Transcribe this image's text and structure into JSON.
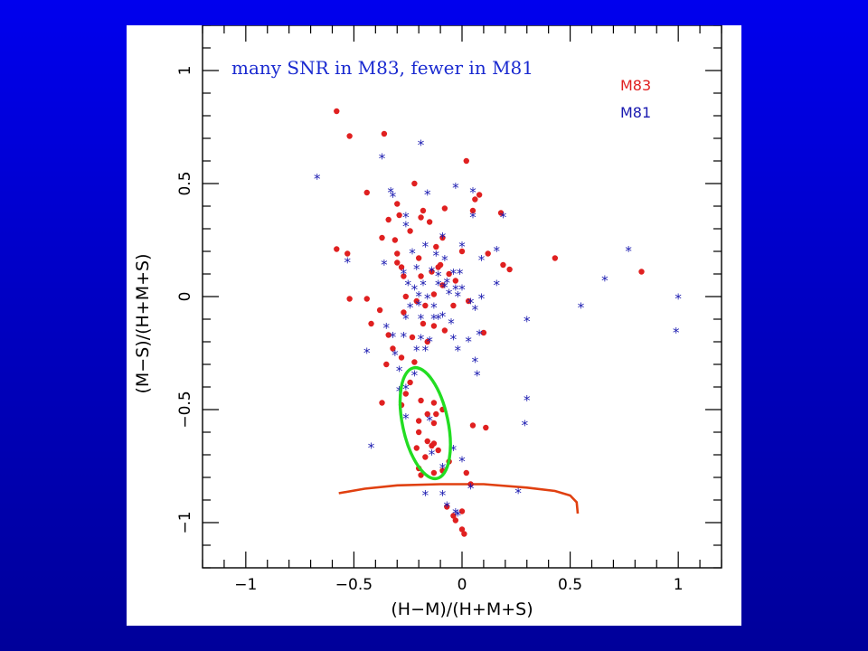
{
  "chart_data": {
    "type": "scatter",
    "title": "",
    "xlabel": "(H−M)/(H+M+S)",
    "ylabel": "(M−S)/(H+M+S)",
    "xlim": [
      -1.2,
      1.2
    ],
    "ylim": [
      -1.2,
      1.2
    ],
    "x_ticks": [
      -1,
      -0.5,
      0,
      0.5,
      1
    ],
    "x_tick_labels": [
      "−1",
      "−0.5",
      "0",
      "0.5",
      "1"
    ],
    "y_ticks": [
      -1,
      -0.5,
      0,
      0.5,
      1
    ],
    "y_tick_labels": [
      "−1",
      "−0.5",
      "0",
      "0.5",
      "1"
    ],
    "grid": false,
    "legend": {
      "placement": "top-right",
      "entries": [
        "M83",
        "M81"
      ]
    },
    "annotation": "many SNR in M83, fewer in M81",
    "ellipse": {
      "cx": -0.17,
      "cy": -0.56,
      "rx": 0.105,
      "ry": 0.25,
      "tilt_deg": -12,
      "color": "#22dd22"
    },
    "curve": {
      "color": "#e04010",
      "points": [
        [
          -0.57,
          -0.87
        ],
        [
          -0.45,
          -0.85
        ],
        [
          -0.3,
          -0.835
        ],
        [
          -0.1,
          -0.83
        ],
        [
          0.1,
          -0.83
        ],
        [
          0.3,
          -0.845
        ],
        [
          0.43,
          -0.86
        ],
        [
          0.5,
          -0.88
        ],
        [
          0.53,
          -0.91
        ],
        [
          0.535,
          -0.96
        ]
      ]
    },
    "series": [
      {
        "name": "M83",
        "color": "#e02020",
        "marker": "dot",
        "points": [
          [
            -0.58,
            0.82
          ],
          [
            -0.52,
            0.71
          ],
          [
            -0.36,
            0.72
          ],
          [
            0.02,
            0.6
          ],
          [
            -0.44,
            0.46
          ],
          [
            -0.22,
            0.5
          ],
          [
            -0.3,
            0.41
          ],
          [
            -0.18,
            0.38
          ],
          [
            -0.08,
            0.39
          ],
          [
            0.06,
            0.43
          ],
          [
            0.08,
            0.45
          ],
          [
            0.18,
            0.37
          ],
          [
            -0.34,
            0.34
          ],
          [
            -0.29,
            0.36
          ],
          [
            -0.19,
            0.35
          ],
          [
            -0.15,
            0.33
          ],
          [
            0.05,
            0.38
          ],
          [
            -0.24,
            0.29
          ],
          [
            -0.09,
            0.26
          ],
          [
            -0.12,
            0.22
          ],
          [
            -0.31,
            0.25
          ],
          [
            -0.37,
            0.26
          ],
          [
            -0.58,
            0.21
          ],
          [
            -0.53,
            0.19
          ],
          [
            -0.3,
            0.19
          ],
          [
            -0.2,
            0.17
          ],
          [
            -0.1,
            0.14
          ],
          [
            0.0,
            0.2
          ],
          [
            0.12,
            0.19
          ],
          [
            0.19,
            0.14
          ],
          [
            0.22,
            0.12
          ],
          [
            0.43,
            0.17
          ],
          [
            0.83,
            0.11
          ],
          [
            -0.3,
            0.15
          ],
          [
            -0.28,
            0.13
          ],
          [
            -0.27,
            0.09
          ],
          [
            -0.19,
            0.09
          ],
          [
            -0.14,
            0.11
          ],
          [
            -0.11,
            0.13
          ],
          [
            -0.06,
            0.1
          ],
          [
            -0.09,
            0.05
          ],
          [
            -0.03,
            0.07
          ],
          [
            -0.52,
            -0.01
          ],
          [
            -0.44,
            -0.01
          ],
          [
            -0.26,
            0.0
          ],
          [
            -0.21,
            -0.02
          ],
          [
            -0.17,
            -0.04
          ],
          [
            -0.13,
            0.01
          ],
          [
            -0.04,
            -0.04
          ],
          [
            0.03,
            -0.02
          ],
          [
            -0.38,
            -0.06
          ],
          [
            -0.42,
            -0.12
          ],
          [
            -0.34,
            -0.17
          ],
          [
            -0.27,
            -0.07
          ],
          [
            -0.18,
            -0.12
          ],
          [
            -0.13,
            -0.13
          ],
          [
            -0.08,
            -0.15
          ],
          [
            -0.23,
            -0.18
          ],
          [
            -0.16,
            -0.2
          ],
          [
            0.1,
            -0.16
          ],
          [
            -0.32,
            -0.23
          ],
          [
            -0.35,
            -0.3
          ],
          [
            -0.28,
            -0.27
          ],
          [
            -0.22,
            -0.29
          ],
          [
            -0.37,
            -0.47
          ],
          [
            -0.26,
            -0.43
          ],
          [
            -0.24,
            -0.38
          ],
          [
            -0.28,
            -0.48
          ],
          [
            -0.19,
            -0.46
          ],
          [
            -0.13,
            -0.47
          ],
          [
            -0.16,
            -0.52
          ],
          [
            -0.12,
            -0.52
          ],
          [
            -0.2,
            -0.55
          ],
          [
            -0.13,
            -0.56
          ],
          [
            -0.09,
            -0.5
          ],
          [
            -0.2,
            -0.6
          ],
          [
            -0.13,
            -0.65
          ],
          [
            -0.16,
            -0.64
          ],
          [
            -0.14,
            -0.66
          ],
          [
            -0.11,
            -0.68
          ],
          [
            -0.21,
            -0.67
          ],
          [
            -0.17,
            -0.71
          ],
          [
            -0.2,
            -0.76
          ],
          [
            -0.13,
            -0.78
          ],
          [
            -0.09,
            -0.77
          ],
          [
            -0.19,
            -0.79
          ],
          [
            -0.06,
            -0.73
          ],
          [
            0.02,
            -0.78
          ],
          [
            0.05,
            -0.57
          ],
          [
            0.11,
            -0.58
          ],
          [
            0.04,
            -0.83
          ],
          [
            0.0,
            -0.95
          ],
          [
            -0.04,
            -0.97
          ],
          [
            -0.03,
            -0.99
          ],
          [
            0.0,
            -1.03
          ],
          [
            0.01,
            -1.05
          ],
          [
            -0.07,
            -0.93
          ]
        ]
      },
      {
        "name": "M81",
        "color": "#1a1ab0",
        "marker": "asterisk",
        "points": [
          [
            -0.67,
            0.52
          ],
          [
            -0.37,
            0.61
          ],
          [
            -0.19,
            0.67
          ],
          [
            -0.16,
            0.45
          ],
          [
            -0.33,
            0.46
          ],
          [
            -0.32,
            0.44
          ],
          [
            -0.03,
            0.48
          ],
          [
            0.05,
            0.46
          ],
          [
            0.05,
            0.35
          ],
          [
            0.19,
            0.35
          ],
          [
            -0.26,
            0.35
          ],
          [
            -0.26,
            0.31
          ],
          [
            -0.09,
            0.26
          ],
          [
            -0.53,
            0.15
          ],
          [
            -0.36,
            0.14
          ],
          [
            -0.23,
            0.19
          ],
          [
            -0.17,
            0.22
          ],
          [
            -0.12,
            0.18
          ],
          [
            -0.08,
            0.16
          ],
          [
            0.0,
            0.22
          ],
          [
            0.09,
            0.16
          ],
          [
            0.16,
            0.2
          ],
          [
            -0.27,
            0.1
          ],
          [
            -0.21,
            0.12
          ],
          [
            -0.14,
            0.11
          ],
          [
            -0.11,
            0.09
          ],
          [
            -0.07,
            0.06
          ],
          [
            -0.04,
            0.1
          ],
          [
            -0.01,
            0.1
          ],
          [
            -0.25,
            0.05
          ],
          [
            -0.22,
            0.03
          ],
          [
            -0.18,
            0.05
          ],
          [
            -0.11,
            0.05
          ],
          [
            -0.08,
            0.04
          ],
          [
            -0.03,
            0.03
          ],
          [
            0.0,
            0.03
          ],
          [
            -0.2,
            0.0
          ],
          [
            -0.16,
            -0.01
          ],
          [
            -0.06,
            0.01
          ],
          [
            -0.02,
            0.0
          ],
          [
            0.04,
            -0.03
          ],
          [
            0.09,
            -0.01
          ],
          [
            0.16,
            0.05
          ],
          [
            0.06,
            -0.06
          ],
          [
            0.3,
            -0.11
          ],
          [
            0.55,
            -0.05
          ],
          [
            0.66,
            0.07
          ],
          [
            0.77,
            0.2
          ],
          [
            1.0,
            -0.01
          ],
          [
            0.99,
            -0.16
          ],
          [
            -0.24,
            -0.05
          ],
          [
            -0.2,
            -0.04
          ],
          [
            -0.13,
            -0.05
          ],
          [
            -0.11,
            -0.1
          ],
          [
            -0.26,
            -0.1
          ],
          [
            -0.19,
            -0.1
          ],
          [
            -0.13,
            -0.1
          ],
          [
            -0.09,
            -0.09
          ],
          [
            -0.05,
            -0.12
          ],
          [
            -0.35,
            -0.14
          ],
          [
            -0.32,
            -0.18
          ],
          [
            -0.27,
            -0.18
          ],
          [
            -0.19,
            -0.19
          ],
          [
            -0.15,
            -0.2
          ],
          [
            -0.04,
            -0.19
          ],
          [
            -0.02,
            -0.24
          ],
          [
            0.03,
            -0.2
          ],
          [
            0.08,
            -0.17
          ],
          [
            -0.44,
            -0.25
          ],
          [
            -0.31,
            -0.26
          ],
          [
            -0.21,
            -0.24
          ],
          [
            -0.17,
            -0.24
          ],
          [
            0.06,
            -0.29
          ],
          [
            0.07,
            -0.35
          ],
          [
            -0.29,
            -0.33
          ],
          [
            -0.22,
            -0.35
          ],
          [
            -0.26,
            -0.41
          ],
          [
            -0.29,
            -0.42
          ],
          [
            -0.26,
            -0.54
          ],
          [
            -0.15,
            -0.55
          ],
          [
            0.3,
            -0.46
          ],
          [
            0.29,
            -0.57
          ],
          [
            -0.42,
            -0.67
          ],
          [
            -0.14,
            -0.7
          ],
          [
            -0.04,
            -0.68
          ],
          [
            0.0,
            -0.73
          ],
          [
            -0.09,
            -0.76
          ],
          [
            0.04,
            -0.85
          ],
          [
            -0.17,
            -0.88
          ],
          [
            -0.09,
            -0.88
          ],
          [
            0.26,
            -0.87
          ],
          [
            -0.07,
            -0.93
          ],
          [
            -0.03,
            -0.96
          ],
          [
            -0.02,
            -0.97
          ]
        ]
      }
    ]
  }
}
